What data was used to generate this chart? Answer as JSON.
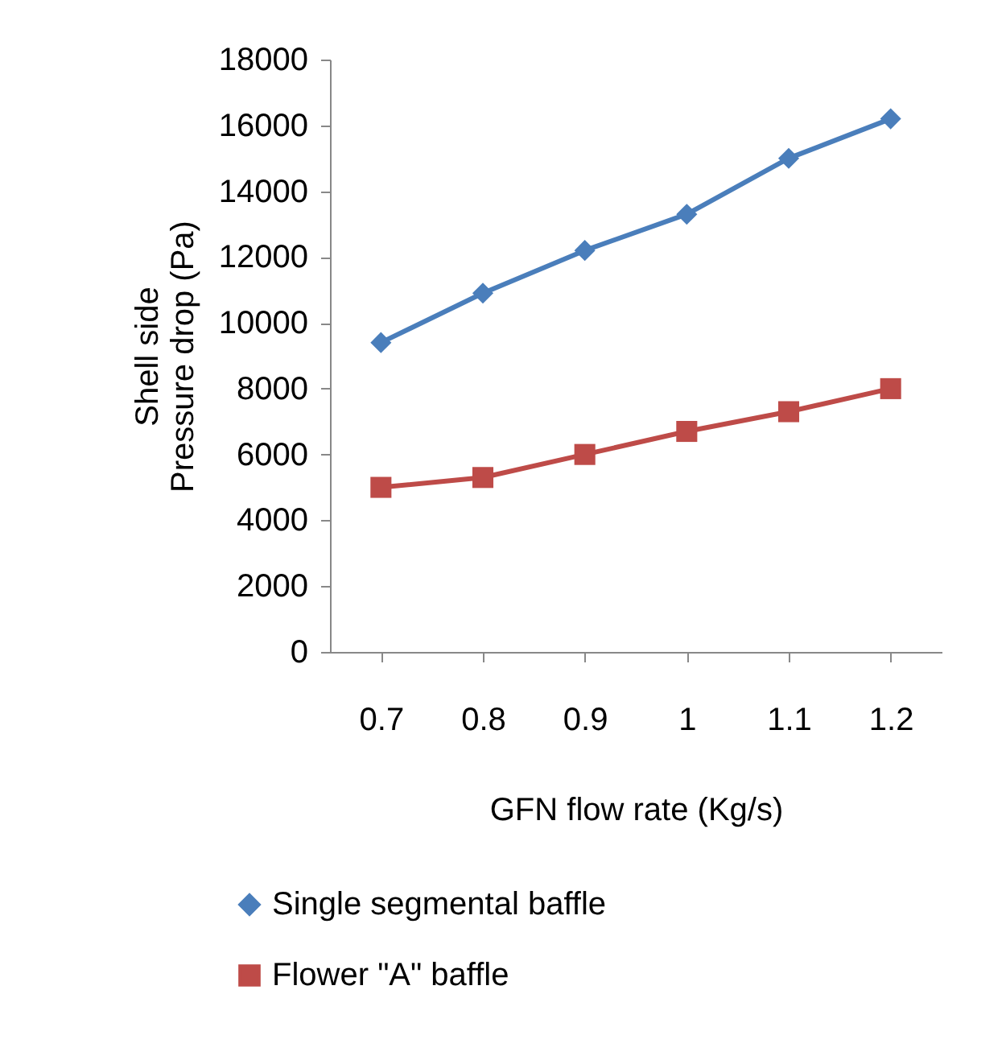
{
  "chart_data": {
    "type": "line",
    "xlabel": "GFN flow rate (Kg/s)",
    "ylabel": "Shell side\nPressure drop (Pa)",
    "categories": [
      "0.7",
      "0.8",
      "0.9",
      "1",
      "1.1",
      "1.2"
    ],
    "ylim": [
      0,
      18000
    ],
    "yticks": [
      0,
      2000,
      4000,
      6000,
      8000,
      10000,
      12000,
      14000,
      16000,
      18000
    ],
    "grid": false,
    "legend": "bottom",
    "series": [
      {
        "name": "Single segmental baffle",
        "color": "#4a7ebb",
        "marker": "diamond",
        "values": [
          9400,
          10900,
          12200,
          13300,
          15000,
          16200
        ]
      },
      {
        "name": "Flower \"A\" baffle",
        "color": "#be4b48",
        "marker": "square",
        "values": [
          5000,
          5300,
          6000,
          6700,
          7300,
          8000
        ]
      }
    ]
  }
}
